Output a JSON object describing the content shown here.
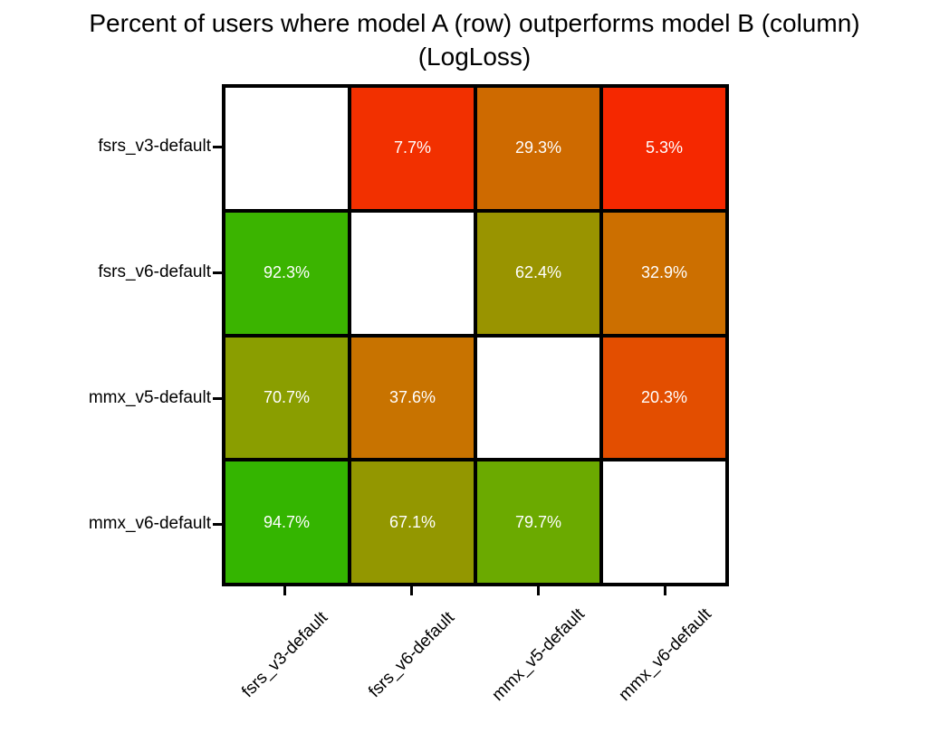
{
  "title": "Percent of users where model A (row) outperforms model B (column)",
  "subtitle": "(LogLoss)",
  "chart_data": {
    "type": "heatmap",
    "title": "Percent of users where model A (row) outperforms model B (column)",
    "subtitle": "(LogLoss)",
    "metric": "LogLoss",
    "rows": [
      "fsrs_v3-default",
      "fsrs_v6-default",
      "mmx_v5-default",
      "mmx_v6-default"
    ],
    "cols": [
      "fsrs_v3-default",
      "fsrs_v6-default",
      "mmx_v5-default",
      "mmx_v6-default"
    ],
    "values_percent": [
      [
        null,
        7.7,
        29.3,
        5.3
      ],
      [
        92.3,
        null,
        62.4,
        32.9
      ],
      [
        70.7,
        37.6,
        null,
        20.3
      ],
      [
        94.7,
        67.1,
        79.7,
        null
      ]
    ],
    "value_suffix": "%",
    "colormap": "red (low) to green (high)",
    "diagonal_color": "#FFFFFF",
    "cell_text_color": "#FFFFFF",
    "grid_line_color": "#000000",
    "legend": "none",
    "cells": [
      [
        {
          "label": "",
          "color": "#FFFFFF"
        },
        {
          "label": "7.7%",
          "color": "#F23000"
        },
        {
          "label": "29.3%",
          "color": "#CE6A00"
        },
        {
          "label": "5.3%",
          "color": "#F52800"
        }
      ],
      [
        {
          "label": "92.3%",
          "color": "#3BB400"
        },
        {
          "label": "",
          "color": "#FFFFFF"
        },
        {
          "label": "62.4%",
          "color": "#999400"
        },
        {
          "label": "32.9%",
          "color": "#CC6F00"
        }
      ],
      [
        {
          "label": "70.7%",
          "color": "#8A9E00"
        },
        {
          "label": "37.6%",
          "color": "#C87300"
        },
        {
          "label": "",
          "color": "#FFFFFF"
        },
        {
          "label": "20.3%",
          "color": "#E34E00"
        }
      ],
      [
        {
          "label": "94.7%",
          "color": "#34B500"
        },
        {
          "label": "67.1%",
          "color": "#939700"
        },
        {
          "label": "79.7%",
          "color": "#6BAA00"
        },
        {
          "label": "",
          "color": "#FFFFFF"
        }
      ]
    ]
  }
}
